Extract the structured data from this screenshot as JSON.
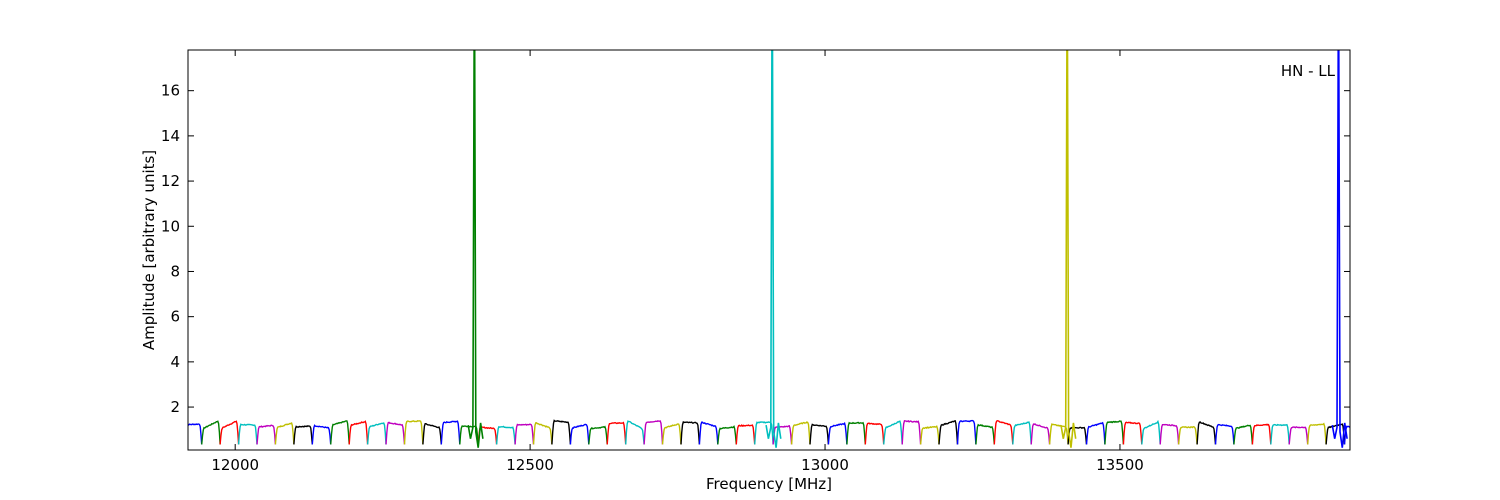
{
  "chart_data": {
    "type": "line",
    "title": "",
    "xlabel": "Frequency [MHz]",
    "ylabel": "Amplitude [arbitrary units]",
    "annotation": "HN - LL",
    "xlim": [
      11920,
      13890
    ],
    "ylim": [
      0.1,
      17.8
    ],
    "xticks": [
      12000,
      12500,
      13000,
      13500
    ],
    "yticks": [
      2,
      4,
      6,
      8,
      10,
      12,
      14,
      16
    ],
    "grid": false,
    "legend": "none",
    "channel_width_mhz": 31.25,
    "series_colors": [
      "#0000ff",
      "#008000",
      "#ff0000",
      "#00bfbf",
      "#bf00bf",
      "#bfbf00",
      "#000000"
    ],
    "spikes": [
      {
        "x": 12405,
        "peak": 17.8,
        "color": "#008000"
      },
      {
        "x": 12910,
        "peak": 17.8,
        "color": "#00bfbf"
      },
      {
        "x": 13410,
        "peak": 17.8,
        "color": "#bfbf00"
      },
      {
        "x": 13870,
        "peak": 17.8,
        "color": "#0000ff"
      }
    ],
    "channel_profile": {
      "plateau_min": 1.05,
      "plateau_max": 1.4,
      "edge_dip": 0.35
    }
  }
}
